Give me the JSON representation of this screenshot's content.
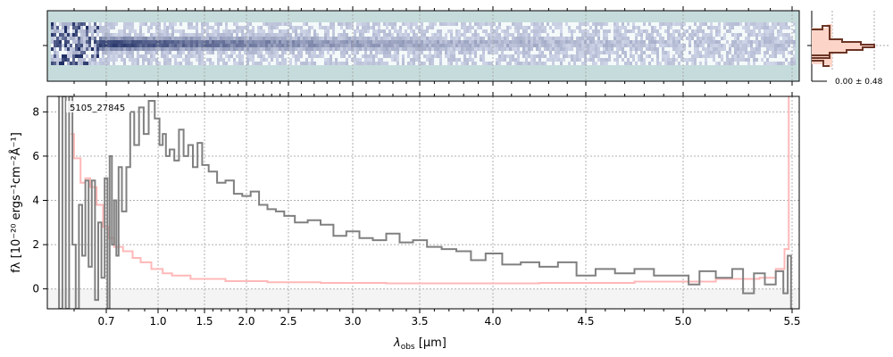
{
  "chart_data": {
    "type": "line",
    "title": "",
    "object_label": "5105_27845",
    "xlabel": "λobs [μm]",
    "xlabel_main": "λ",
    "xlabel_sub": "obs",
    "xlabel_unit": " [μm]",
    "ylabel": "fλ [10⁻²⁰ ergs⁻¹cm⁻²Å⁻¹]",
    "xlim": [
      0.52,
      5.53
    ],
    "ylim": [
      -0.9,
      8.7
    ],
    "x_scale": "nonlinear (grism pixel)",
    "grid": true,
    "xticks": [
      "0.7",
      "1.0",
      "1.5",
      "2.0",
      "2.5",
      "3.0",
      "3.5",
      "4.0",
      "4.5",
      "5.0",
      "5.5"
    ],
    "yticks": [
      "0",
      "2",
      "4",
      "6",
      "8"
    ],
    "colors": {
      "flux": "#808080",
      "error": "#ffb8b8",
      "negative_band": "#f4f4f4",
      "hist_edge": "#6b3526",
      "hist_fill": "#fdd5c8",
      "image_bg": "#c6dcdc"
    },
    "series": [
      {
        "key": "flux",
        "points": [
          [
            0.55,
            8.7
          ],
          [
            0.56,
            -0.9
          ],
          [
            0.57,
            8.7
          ],
          [
            0.58,
            -0.9
          ],
          [
            0.59,
            8.7
          ],
          [
            0.6,
            2.0
          ],
          [
            0.61,
            -0.9
          ],
          [
            0.62,
            3.8
          ],
          [
            0.63,
            1.5
          ],
          [
            0.64,
            4.9
          ],
          [
            0.65,
            1.0
          ],
          [
            0.66,
            4.9
          ],
          [
            0.67,
            -0.5
          ],
          [
            0.68,
            3.0
          ],
          [
            0.69,
            0.5
          ],
          [
            0.7,
            5.0
          ],
          [
            0.71,
            -0.9
          ],
          [
            0.72,
            6.0
          ],
          [
            0.73,
            2.0
          ],
          [
            0.74,
            4.0
          ],
          [
            0.75,
            1.5
          ],
          [
            0.76,
            5.5
          ],
          [
            0.78,
            3.5
          ],
          [
            0.8,
            5.5
          ],
          [
            0.82,
            8.0
          ],
          [
            0.85,
            6.5
          ],
          [
            0.88,
            8.2
          ],
          [
            0.91,
            7.0
          ],
          [
            0.95,
            8.5
          ],
          [
            1.0,
            7.7
          ],
          [
            1.03,
            6.5
          ],
          [
            1.07,
            7.0
          ],
          [
            1.1,
            6.0
          ],
          [
            1.15,
            6.3
          ],
          [
            1.2,
            5.8
          ],
          [
            1.25,
            7.2
          ],
          [
            1.3,
            6.0
          ],
          [
            1.35,
            6.5
          ],
          [
            1.4,
            5.5
          ],
          [
            1.45,
            6.6
          ],
          [
            1.5,
            5.6
          ],
          [
            1.6,
            5.3
          ],
          [
            1.7,
            4.8
          ],
          [
            1.8,
            4.9
          ],
          [
            1.9,
            4.3
          ],
          [
            2.0,
            4.2
          ],
          [
            2.1,
            4.4
          ],
          [
            2.2,
            3.8
          ],
          [
            2.3,
            3.6
          ],
          [
            2.4,
            3.5
          ],
          [
            2.5,
            3.3
          ],
          [
            2.6,
            3.0
          ],
          [
            2.7,
            3.1
          ],
          [
            2.8,
            2.9
          ],
          [
            2.9,
            2.4
          ],
          [
            3.0,
            2.6
          ],
          [
            3.1,
            2.3
          ],
          [
            3.2,
            2.2
          ],
          [
            3.3,
            2.5
          ],
          [
            3.4,
            2.1
          ],
          [
            3.5,
            2.2
          ],
          [
            3.6,
            1.9
          ],
          [
            3.7,
            1.8
          ],
          [
            3.8,
            1.7
          ],
          [
            3.9,
            1.3
          ],
          [
            4.0,
            1.6
          ],
          [
            4.1,
            1.1
          ],
          [
            4.2,
            1.2
          ],
          [
            4.3,
            1.0
          ],
          [
            4.4,
            1.2
          ],
          [
            4.5,
            0.6
          ],
          [
            4.6,
            0.9
          ],
          [
            4.7,
            0.7
          ],
          [
            4.8,
            0.9
          ],
          [
            4.9,
            0.6
          ],
          [
            5.0,
            0.6
          ],
          [
            5.05,
            0.2
          ],
          [
            5.1,
            0.8
          ],
          [
            5.2,
            0.5
          ],
          [
            5.25,
            0.9
          ],
          [
            5.3,
            -0.2
          ],
          [
            5.35,
            0.7
          ],
          [
            5.4,
            0.2
          ],
          [
            5.45,
            0.8
          ],
          [
            5.47,
            -0.2
          ],
          [
            5.49,
            1.5
          ],
          [
            5.5,
            -0.9
          ]
        ]
      },
      {
        "key": "error",
        "points": [
          [
            0.59,
            7.0
          ],
          [
            0.61,
            5.9
          ],
          [
            0.63,
            4.8
          ],
          [
            0.64,
            5.0
          ],
          [
            0.66,
            4.6
          ],
          [
            0.68,
            3.8
          ],
          [
            0.7,
            2.8
          ],
          [
            0.72,
            2.3
          ],
          [
            0.75,
            1.9
          ],
          [
            0.8,
            1.7
          ],
          [
            0.85,
            1.4
          ],
          [
            0.9,
            1.2
          ],
          [
            1.0,
            0.9
          ],
          [
            1.1,
            0.7
          ],
          [
            1.2,
            0.6
          ],
          [
            1.5,
            0.45
          ],
          [
            2.0,
            0.35
          ],
          [
            2.5,
            0.3
          ],
          [
            3.0,
            0.27
          ],
          [
            3.5,
            0.25
          ],
          [
            4.0,
            0.25
          ],
          [
            4.5,
            0.27
          ],
          [
            5.0,
            0.33
          ],
          [
            5.3,
            0.45
          ],
          [
            5.4,
            0.5
          ],
          [
            5.45,
            0.9
          ],
          [
            5.48,
            1.8
          ],
          [
            5.49,
            8.7
          ]
        ]
      }
    ],
    "profile_panel": {
      "label": "0.00 ± 0.48"
    }
  }
}
